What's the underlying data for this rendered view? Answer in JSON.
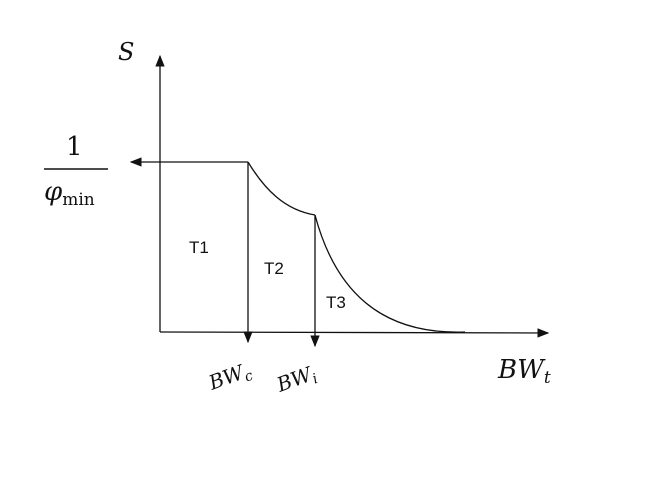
{
  "axes": {
    "y_label": "S",
    "x_label": {
      "base": "BW",
      "sub": "t"
    }
  },
  "level": {
    "numerator": "1",
    "denominator": {
      "base": "φ",
      "sub": "min"
    }
  },
  "regions": [
    "T1",
    "T2",
    "T3"
  ],
  "markers": [
    {
      "base": "BW",
      "sub": "c"
    },
    {
      "base": "BW",
      "sub": "i"
    }
  ]
}
